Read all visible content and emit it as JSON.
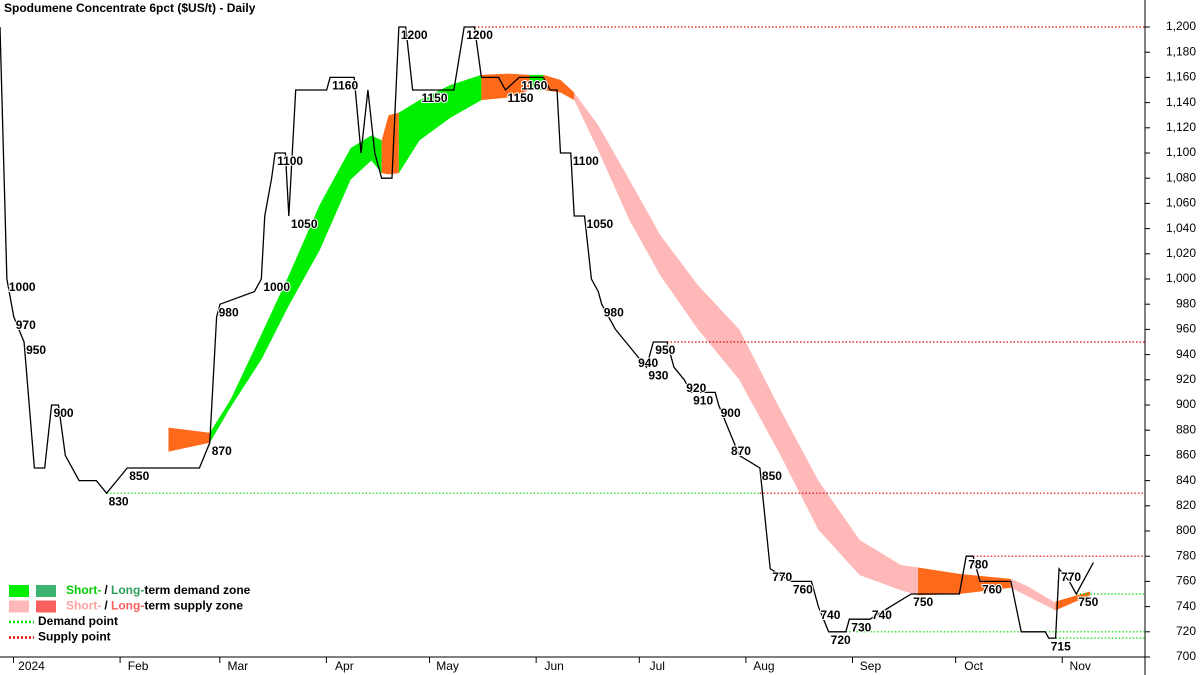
{
  "chart_data": {
    "type": "line",
    "title": "Spodumene Concentrate 6pct ($US/t) - Daily",
    "xlim": [
      -8,
      325
    ],
    "ylim": [
      700,
      1200
    ],
    "xticks": [
      {
        "value": 0,
        "label": "2024"
      },
      {
        "value": 31,
        "label": "Feb"
      },
      {
        "value": 60,
        "label": "Mar"
      },
      {
        "value": 91,
        "label": "Apr"
      },
      {
        "value": 121,
        "label": "May"
      },
      {
        "value": 152,
        "label": "Jun"
      },
      {
        "value": 182,
        "label": "Jul"
      },
      {
        "value": 213,
        "label": "Aug"
      },
      {
        "value": 244,
        "label": "Sep"
      },
      {
        "value": 274,
        "label": "Oct"
      },
      {
        "value": 305,
        "label": "Nov"
      }
    ],
    "yticks": [
      700,
      720,
      740,
      760,
      780,
      800,
      820,
      840,
      860,
      880,
      900,
      920,
      940,
      960,
      980,
      {
        "value": 1000,
        "label": "1,000"
      },
      {
        "value": 1020,
        "label": "1,020"
      },
      {
        "value": 1040,
        "label": "1,040"
      },
      {
        "value": 1060,
        "label": "1,060"
      },
      {
        "value": 1080,
        "label": "1,080"
      },
      {
        "value": 1100,
        "label": "1,100"
      },
      {
        "value": 1120,
        "label": "1,120"
      },
      {
        "value": 1140,
        "label": "1,140"
      },
      {
        "value": 1160,
        "label": "1,160"
      },
      {
        "value": 1180,
        "label": "1,180"
      },
      {
        "value": 1200,
        "label": "1,200"
      }
    ],
    "series": [
      {
        "color": "#000000",
        "x": [
          -8,
          -6,
          -4,
          -1,
          2,
          5,
          7,
          9,
          11,
          15,
          20,
          23,
          26,
          29,
          50,
          53,
          55,
          56,
          66,
          68,
          69,
          71,
          72,
          75,
          76,
          78,
          82,
          87,
          88,
          95,
          97,
          99,
          101,
          103,
          106,
          108,
          110,
          112,
          114,
          124,
          127,
          130,
          132,
          137,
          139,
          143,
          150,
          152,
          154,
          155,
          158,
          159,
          162,
          164,
          166,
          167,
          171,
          174,
          177,
          180,
          182,
          186,
          188,
          191,
          193,
          200,
          201,
          204,
          207,
          213,
          216,
          222,
          228,
          230,
          233,
          238,
          239,
          245,
          251,
          257,
          271,
          273,
          275,
          277,
          286,
          289,
          296,
          297,
          299,
          300,
          303,
          305,
          307,
          309,
          310
        ],
        "values": [
          1200,
          1000,
          970,
          950,
          850,
          850,
          900,
          900,
          860,
          840,
          840,
          830,
          840,
          850,
          850,
          870,
          970,
          980,
          990,
          1000,
          1050,
          1080,
          1100,
          1100,
          1050,
          1150,
          1150,
          1150,
          1160,
          1160,
          1100,
          1150,
          1100,
          1080,
          1080,
          1200,
          1200,
          1150,
          1150,
          1150,
          1200,
          1200,
          1160,
          1160,
          1150,
          1160,
          1160,
          1150,
          1150,
          1100,
          1100,
          1050,
          1050,
          1000,
          990,
          980,
          960,
          950,
          940,
          930,
          950,
          950,
          930,
          920,
          910,
          910,
          900,
          880,
          860,
          850,
          770,
          760,
          760,
          740,
          720,
          720,
          730,
          730,
          740,
          750,
          750,
          780,
          780,
          760,
          760,
          720,
          720,
          715,
          715,
          770,
          760,
          750,
          760,
          770,
          775
        ]
      }
    ],
    "bands": [
      {
        "color": "#ff6a1a",
        "x": [
          41,
          53
        ],
        "lower": [
          863,
          870
        ],
        "upper": [
          882,
          878
        ]
      },
      {
        "color": "#00ee00",
        "x": [
          53,
          59,
          68,
          76,
          85,
          94,
          100,
          103
        ],
        "lower": [
          870,
          898,
          936,
          979,
          1023,
          1079,
          1094,
          1084
        ],
        "upper": [
          878,
          904,
          956,
          1003,
          1059,
          1104,
          1114,
          1110
        ]
      },
      {
        "color": "#ff6a1a",
        "x": [
          103,
          105,
          108
        ],
        "lower": [
          1084,
          1083,
          1084
        ],
        "upper": [
          1110,
          1130,
          1132
        ]
      },
      {
        "color": "#00ee00",
        "x": [
          108,
          114,
          123,
          132
        ],
        "lower": [
          1084,
          1110,
          1128,
          1142
        ],
        "upper": [
          1132,
          1142,
          1154,
          1162
        ]
      },
      {
        "color": "#ff6a1a",
        "x": [
          132,
          140,
          146
        ],
        "lower": [
          1142,
          1144,
          1150
        ],
        "upper": [
          1162,
          1163,
          1162
        ]
      },
      {
        "color": "#00ee00",
        "x": [
          146,
          150
        ],
        "lower": [
          1150,
          1150
        ],
        "upper": [
          1162,
          1162
        ]
      },
      {
        "color": "#ff6a1a",
        "x": [
          150,
          155,
          159
        ],
        "lower": [
          1150,
          1148,
          1142
        ],
        "upper": [
          1162,
          1158,
          1148
        ]
      },
      {
        "color": "#ffb8b8",
        "x": [
          159,
          166,
          175,
          184,
          195,
          207,
          219,
          230,
          242,
          254,
          259
        ],
        "lower": [
          1142,
          1102,
          1047,
          1003,
          960,
          920,
          860,
          801,
          765,
          753,
          749
        ],
        "upper": [
          1148,
          1122,
          1079,
          1035,
          995,
          960,
          896,
          840,
          793,
          773,
          771
        ]
      },
      {
        "color": "#ff6a1a",
        "x": [
          259,
          271,
          286
        ],
        "lower": [
          749,
          750,
          755
        ],
        "upper": [
          771,
          766,
          762
        ]
      },
      {
        "color": "#ffb8b8",
        "x": [
          286,
          291,
          299
        ],
        "lower": [
          755,
          748,
          737
        ],
        "upper": [
          762,
          756,
          743
        ]
      },
      {
        "color": "#ff6a1a",
        "x": [
          299,
          309
        ],
        "lower": [
          737,
          749
        ],
        "upper": [
          744,
          752
        ]
      }
    ],
    "supply_points": [
      {
        "x": [
          130,
          325
        ],
        "y": 1200
      },
      {
        "x": [
          186,
          325
        ],
        "y": 950
      },
      {
        "x": [
          213,
          325
        ],
        "y": 830
      },
      {
        "x": [
          273,
          325
        ],
        "y": 780
      }
    ],
    "demand_points": [
      {
        "x": [
          23,
          213
        ],
        "y": 830
      },
      {
        "x": [
          238,
          325
        ],
        "y": 720
      },
      {
        "x": [
          297,
          325
        ],
        "y": 715
      },
      {
        "x": [
          305,
          325
        ],
        "y": 750
      }
    ],
    "supply_color": "#e00000",
    "demand_color": "#00dd00",
    "annotations": [
      {
        "x": -6,
        "y": 1000
      },
      {
        "x": -4,
        "y": 970
      },
      {
        "x": -1,
        "y": 950
      },
      {
        "x": 7,
        "y": 900
      },
      {
        "x": 29,
        "y": 850
      },
      {
        "x": 23,
        "y": 830
      },
      {
        "x": 53,
        "y": 870
      },
      {
        "x": 55,
        "y": 980
      },
      {
        "x": 68,
        "y": 1000
      },
      {
        "x": 72,
        "y": 1100
      },
      {
        "x": 76,
        "y": 1050
      },
      {
        "x": 88,
        "y": 1160
      },
      {
        "x": 108,
        "y": 1200
      },
      {
        "x": 127,
        "y": 1200
      },
      {
        "x": 114,
        "y": 1150
      },
      {
        "x": 139,
        "y": 1150
      },
      {
        "x": 143,
        "y": 1160
      },
      {
        "x": 158,
        "y": 1100
      },
      {
        "x": 162,
        "y": 1050
      },
      {
        "x": 167,
        "y": 980
      },
      {
        "x": 182,
        "y": 950
      },
      {
        "x": 177,
        "y": 940
      },
      {
        "x": 180,
        "y": 930
      },
      {
        "x": 191,
        "y": 920
      },
      {
        "x": 193,
        "y": 910
      },
      {
        "x": 201,
        "y": 900
      },
      {
        "x": 204,
        "y": 870
      },
      {
        "x": 213,
        "y": 850
      },
      {
        "x": 216,
        "y": 770
      },
      {
        "x": 222,
        "y": 760
      },
      {
        "x": 230,
        "y": 740
      },
      {
        "x": 233,
        "y": 720
      },
      {
        "x": 239,
        "y": 730
      },
      {
        "x": 245,
        "y": 740
      },
      {
        "x": 257,
        "y": 750
      },
      {
        "x": 273,
        "y": 780
      },
      {
        "x": 277,
        "y": 760
      },
      {
        "x": 300,
        "y": 770
      },
      {
        "x": 305,
        "y": 750
      },
      {
        "x": 297,
        "y": 715
      }
    ],
    "legend": [
      {
        "swatches": [
          "#00ee00",
          "#3cb371"
        ],
        "parts": [
          {
            "text": "Short-",
            "color": "#00cc00"
          },
          {
            "text": "/ ",
            "color": "#000000"
          },
          {
            "text": "Long-",
            "color": "#2e9e5e"
          },
          {
            "text": "term demand zone",
            "color": "#000000"
          }
        ]
      },
      {
        "swatches": [
          "#ffb8b8",
          "#f86060"
        ],
        "parts": [
          {
            "text": "Short-",
            "color": "#ffa0a0"
          },
          {
            "text": "/ ",
            "color": "#000000"
          },
          {
            "text": "Long-",
            "color": "#f86060"
          },
          {
            "text": "term supply zone",
            "color": "#000000"
          }
        ]
      },
      {
        "line": "#00dd00",
        "parts": [
          {
            "text": "Demand point",
            "color": "#000000"
          }
        ]
      },
      {
        "line": "#e00000",
        "parts": [
          {
            "text": "Supply point",
            "color": "#000000"
          }
        ]
      }
    ]
  }
}
